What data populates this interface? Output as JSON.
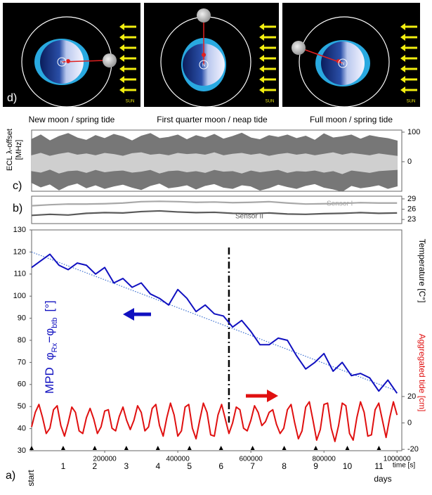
{
  "diagram": {
    "label": "d)",
    "sun": "SUN",
    "pole": "N",
    "panels": [
      {
        "caption": "New moon / spring tide"
      },
      {
        "caption": "First quarter moon / neap tide"
      },
      {
        "caption": "Full moon / spring tide"
      }
    ]
  },
  "chart_data": [
    {
      "type": "band",
      "label": "c)",
      "y_label": [
        "ECL λ-offset",
        "[MHz]"
      ],
      "xlim": [
        0,
        1013000
      ],
      "ylim": [
        -100,
        107
      ],
      "yticks": [
        0,
        100
      ],
      "x": [
        0,
        25000,
        50000,
        75000,
        100000,
        125000,
        150000,
        175000,
        200000,
        225000,
        250000,
        275000,
        300000,
        325000,
        350000,
        375000,
        400000,
        425000,
        450000,
        475000,
        500000,
        525000,
        550000,
        575000,
        600000,
        625000,
        650000,
        675000,
        700000,
        725000,
        750000,
        775000,
        800000,
        825000,
        850000,
        875000,
        900000,
        925000,
        950000,
        975000,
        1000000
      ],
      "series": [
        {
          "color": "#777777",
          "values": [
            75,
            90,
            70,
            85,
            95,
            80,
            72,
            88,
            78,
            92,
            84,
            70,
            86,
            95,
            78,
            82,
            90,
            74,
            88,
            80,
            92,
            76,
            85,
            96,
            80,
            74,
            88,
            82,
            90,
            78,
            86,
            72,
            94,
            80,
            84,
            90,
            76,
            88,
            82,
            78,
            70
          ],
          "lower": [
            -70,
            -85,
            -75,
            -95,
            -80,
            -72,
            -88,
            -78,
            -90,
            -82,
            -76,
            -86,
            -94,
            -80,
            -72,
            -88,
            -84,
            -78,
            -92,
            -80,
            -74,
            -86,
            -90,
            -78,
            -82,
            -96,
            -88,
            -76,
            -84,
            -90,
            -80,
            -74,
            -86,
            -92,
            -100,
            -80,
            -88,
            -84,
            -78,
            -90,
            -82
          ]
        },
        {
          "color": "#cfcfcf",
          "values": [
            20,
            28,
            18,
            25,
            30,
            22,
            26,
            20,
            28,
            24,
            18,
            27,
            30,
            22,
            25,
            20,
            28,
            24,
            26,
            22,
            30,
            20,
            25,
            28,
            22,
            26,
            18,
            24,
            28,
            22,
            26,
            20,
            25,
            30,
            22,
            28,
            24,
            20,
            26,
            22,
            18
          ],
          "lower": [
            -30,
            -35,
            -25,
            -38,
            -30,
            -28,
            -36,
            -26,
            -34,
            -30,
            -28,
            -35,
            -32,
            -26,
            -38,
            -30,
            -28,
            -34,
            -30,
            -36,
            -26,
            -32,
            -30,
            -38,
            -28,
            -34,
            -30,
            -26,
            -36,
            -30,
            -32,
            -28,
            -35,
            -30,
            -40,
            -28,
            -32,
            -36,
            -30,
            -28,
            -26
          ]
        }
      ]
    },
    {
      "type": "line",
      "label": "b)",
      "y_label": "Temperature [C°]",
      "xlim": [
        0,
        1013000
      ],
      "ylim": [
        21.8,
        29.8
      ],
      "yticks": [
        23,
        26,
        29
      ],
      "x": [
        0,
        50000,
        100000,
        150000,
        200000,
        250000,
        300000,
        350000,
        400000,
        450000,
        500000,
        550000,
        600000,
        650000,
        700000,
        750000,
        800000,
        850000,
        900000,
        950000,
        1000000
      ],
      "series": [
        {
          "name": "Sensor I",
          "color": "#a8a8a8",
          "values": [
            27,
            27.3,
            27.5,
            27.5,
            27.6,
            27.8,
            28.2,
            28.3,
            28.2,
            28,
            28.1,
            27.9,
            28,
            28.2,
            27.8,
            27.5,
            27.6,
            27.7,
            27.9,
            27.8,
            27.8
          ]
        },
        {
          "name": "Sensor II",
          "color": "#5a5a5a",
          "values": [
            24.2,
            24.5,
            24.3,
            24.8,
            25,
            24.9,
            25.3,
            25.5,
            25.2,
            25,
            25.1,
            24.8,
            24.7,
            24.9,
            24.6,
            24.5,
            24.7,
            24.8,
            25,
            24.8,
            24.9
          ]
        }
      ]
    },
    {
      "type": "line",
      "label": "a)",
      "y_label": [
        "MPD",
        "φ",
        "Rx",
        "−φ",
        "btb",
        "[°]"
      ],
      "y2_label": "Aggregated tide [cm]",
      "x_label": "time [s]",
      "day_label": "days",
      "xlim": [
        0,
        1013000
      ],
      "xticks": [
        200000,
        400000,
        600000,
        800000,
        1000000
      ],
      "ylim": [
        30,
        130
      ],
      "yticks": [
        30,
        40,
        50,
        60,
        70,
        80,
        90,
        100,
        110,
        120,
        130
      ],
      "y2lim": [
        -21,
        146
      ],
      "y2ticks": [
        -20,
        0,
        20
      ],
      "day_ticks": [
        {
          "value": 0,
          "label": "start"
        },
        {
          "value": 86400,
          "label": "1"
        },
        {
          "value": 172800,
          "label": "2"
        },
        {
          "value": 259200,
          "label": "3"
        },
        {
          "value": 345600,
          "label": "4"
        },
        {
          "value": 432000,
          "label": "5"
        },
        {
          "value": 518400,
          "label": "6"
        },
        {
          "value": 604800,
          "label": "7"
        },
        {
          "value": 691200,
          "label": "8"
        },
        {
          "value": 777600,
          "label": "9"
        },
        {
          "value": 864000,
          "label": "10"
        },
        {
          "value": 950400,
          "label": "11"
        }
      ],
      "vline_x": 540000,
      "trend": {
        "color": "#3a6fd0",
        "x": [
          0,
          1000000
        ],
        "values": [
          120,
          57
        ]
      },
      "series": [
        {
          "color": "#1010c0",
          "x": [
            0,
            25000,
            50000,
            75000,
            100000,
            125000,
            150000,
            175000,
            200000,
            225000,
            250000,
            275000,
            300000,
            325000,
            350000,
            375000,
            400000,
            425000,
            450000,
            475000,
            500000,
            525000,
            550000,
            575000,
            600000,
            625000,
            650000,
            675000,
            700000,
            725000,
            750000,
            775000,
            800000,
            825000,
            850000,
            875000,
            900000,
            925000,
            950000,
            975000,
            1000000
          ],
          "values": [
            113,
            116,
            119,
            114,
            112,
            115,
            114,
            110,
            113,
            106,
            108,
            104,
            106,
            101,
            99,
            96,
            103,
            99,
            93,
            96,
            92,
            91,
            86,
            89,
            84,
            78,
            78,
            81,
            80,
            73,
            67,
            70,
            74,
            66,
            70,
            64,
            65,
            63,
            57,
            62,
            56
          ]
        },
        {
          "color": "#e01010",
          "axis": "y2",
          "x": [
            0,
            10000,
            20000,
            30000,
            40000,
            50000,
            60000,
            70000,
            80000,
            90000,
            100000,
            110000,
            120000,
            130000,
            140000,
            150000,
            160000,
            170000,
            180000,
            190000,
            200000,
            210000,
            220000,
            230000,
            240000,
            250000,
            260000,
            270000,
            280000,
            290000,
            300000,
            310000,
            320000,
            330000,
            340000,
            350000,
            360000,
            370000,
            380000,
            390000,
            400000,
            410000,
            420000,
            430000,
            440000,
            450000,
            460000,
            470000,
            480000,
            490000,
            500000,
            510000,
            520000,
            530000,
            540000,
            550000,
            560000,
            570000,
            580000,
            590000,
            600000,
            610000,
            620000,
            630000,
            640000,
            650000,
            660000,
            670000,
            680000,
            690000,
            700000,
            710000,
            720000,
            730000,
            740000,
            750000,
            760000,
            770000,
            780000,
            790000,
            800000,
            810000,
            820000,
            830000,
            840000,
            850000,
            860000,
            870000,
            880000,
            890000,
            900000,
            910000,
            920000,
            930000,
            940000,
            950000,
            960000,
            970000,
            980000,
            990000,
            1000000
          ],
          "values": [
            -3,
            8,
            14,
            4,
            -8,
            -4,
            10,
            13,
            -2,
            -10,
            0,
            12,
            8,
            -6,
            -8,
            4,
            11,
            3,
            -8,
            -3,
            9,
            10,
            -4,
            -6,
            5,
            12,
            2,
            -5,
            2,
            13,
            8,
            -6,
            -3,
            11,
            14,
            -2,
            -10,
            4,
            15,
            6,
            -10,
            -6,
            12,
            14,
            -4,
            -12,
            2,
            15,
            8,
            -9,
            -10,
            6,
            14,
            3,
            -8,
            0,
            12,
            10,
            -4,
            -6,
            2,
            13,
            8,
            -2,
            1,
            8,
            10,
            -1,
            -8,
            -4,
            10,
            14,
            0,
            -12,
            -6,
            12,
            16,
            2,
            -13,
            -5,
            14,
            15,
            -4,
            -14,
            -2,
            15,
            13,
            -8,
            -13,
            4,
            16,
            8,
            -10,
            -9,
            10,
            15,
            2,
            -11,
            4,
            16,
            6
          ]
        }
      ]
    }
  ]
}
